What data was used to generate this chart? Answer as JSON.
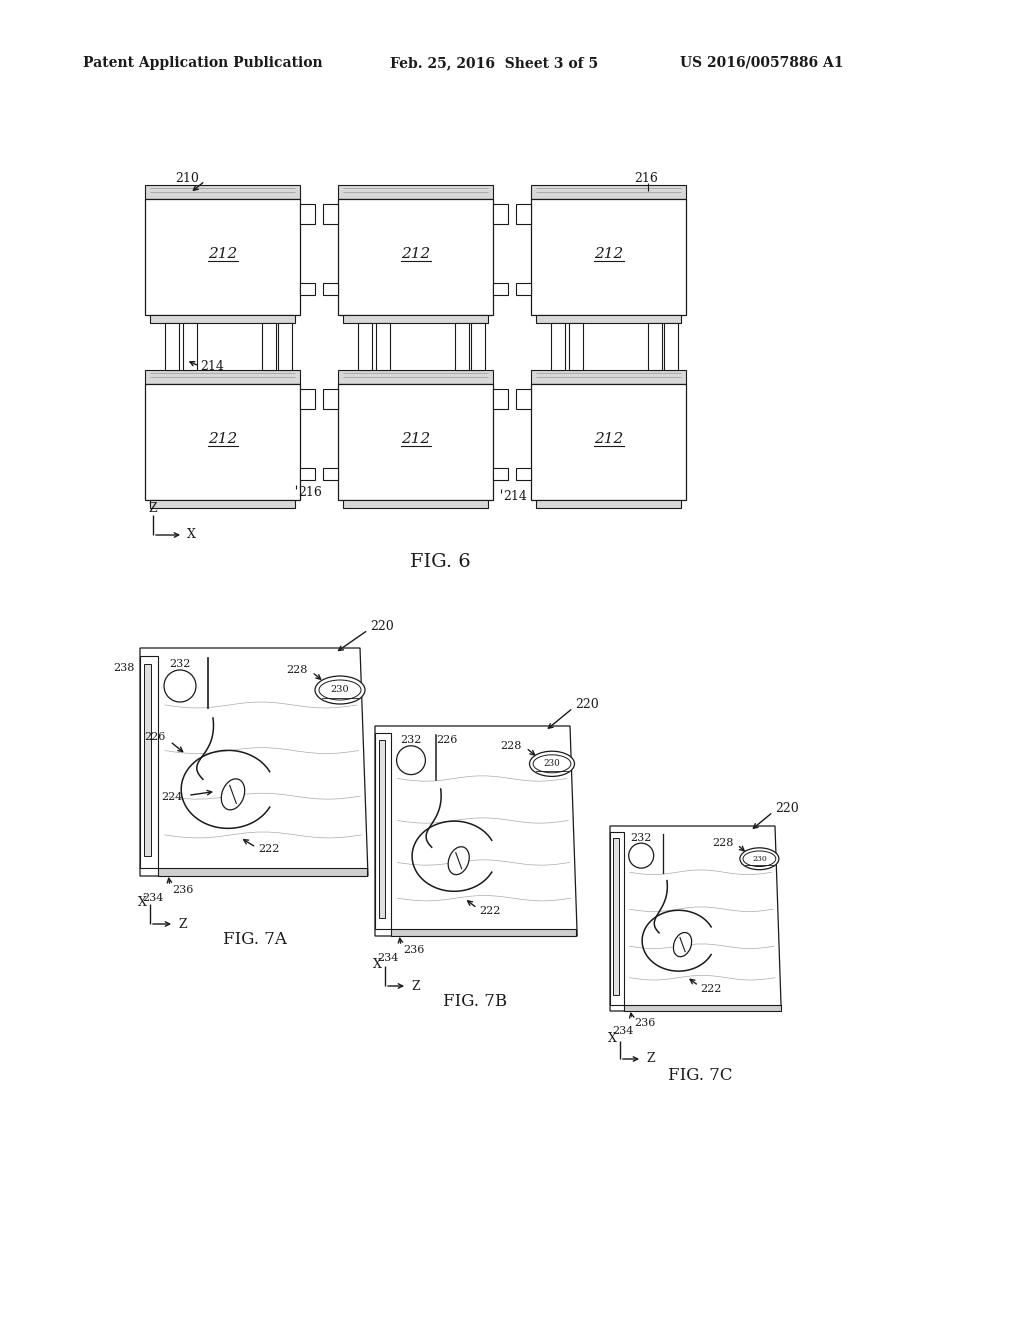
{
  "bg_color": "#ffffff",
  "header_left": "Patent Application Publication",
  "header_mid": "Feb. 25, 2016  Sheet 3 of 5",
  "header_right": "US 2016/0057886 A1",
  "line_color": "#1a1a1a",
  "line_width": 1.0
}
